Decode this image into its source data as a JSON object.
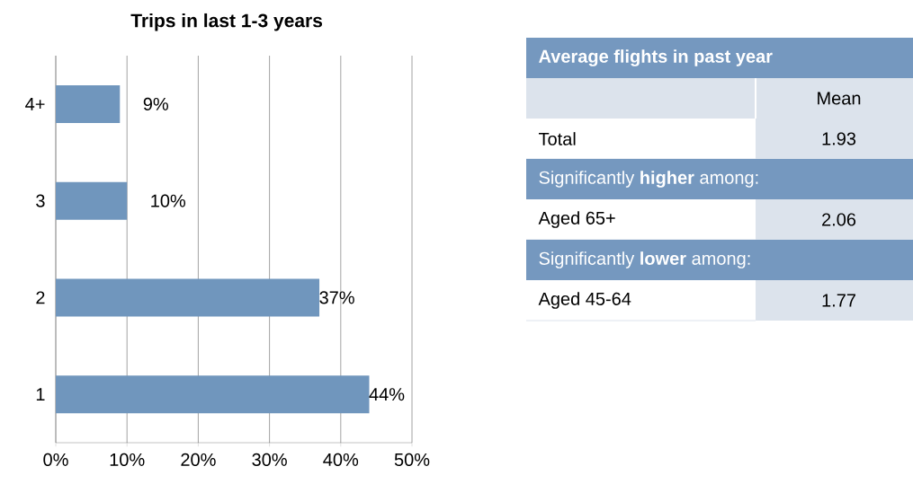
{
  "chart_data": [
    {
      "type": "bar",
      "title": "Trips in last 1-3 years",
      "orientation": "horizontal",
      "categories": [
        "4+",
        "3",
        "2",
        "1"
      ],
      "values": [
        9,
        10,
        37,
        44
      ],
      "value_labels": [
        "9%",
        "10%",
        "37%",
        "44%"
      ],
      "color": "#7096bd",
      "xlim": [
        0,
        50
      ],
      "xticks": [
        {
          "value": 0,
          "label": "0%"
        },
        {
          "value": 10,
          "label": "10%"
        },
        {
          "value": 20,
          "label": "20%"
        },
        {
          "value": 30,
          "label": "30%"
        },
        {
          "value": 40,
          "label": "40%"
        },
        {
          "value": 50,
          "label": "50%"
        }
      ],
      "grid": "x"
    },
    {
      "type": "other",
      "title": "Average flights in past year",
      "annotations": [
        "Mean",
        "Total",
        "1.93",
        "Significantly **higher** among:",
        "Aged 65+",
        "2.06",
        "Significantly **lower** among:",
        "Aged 45-64",
        "1.77"
      ]
    }
  ]
}
